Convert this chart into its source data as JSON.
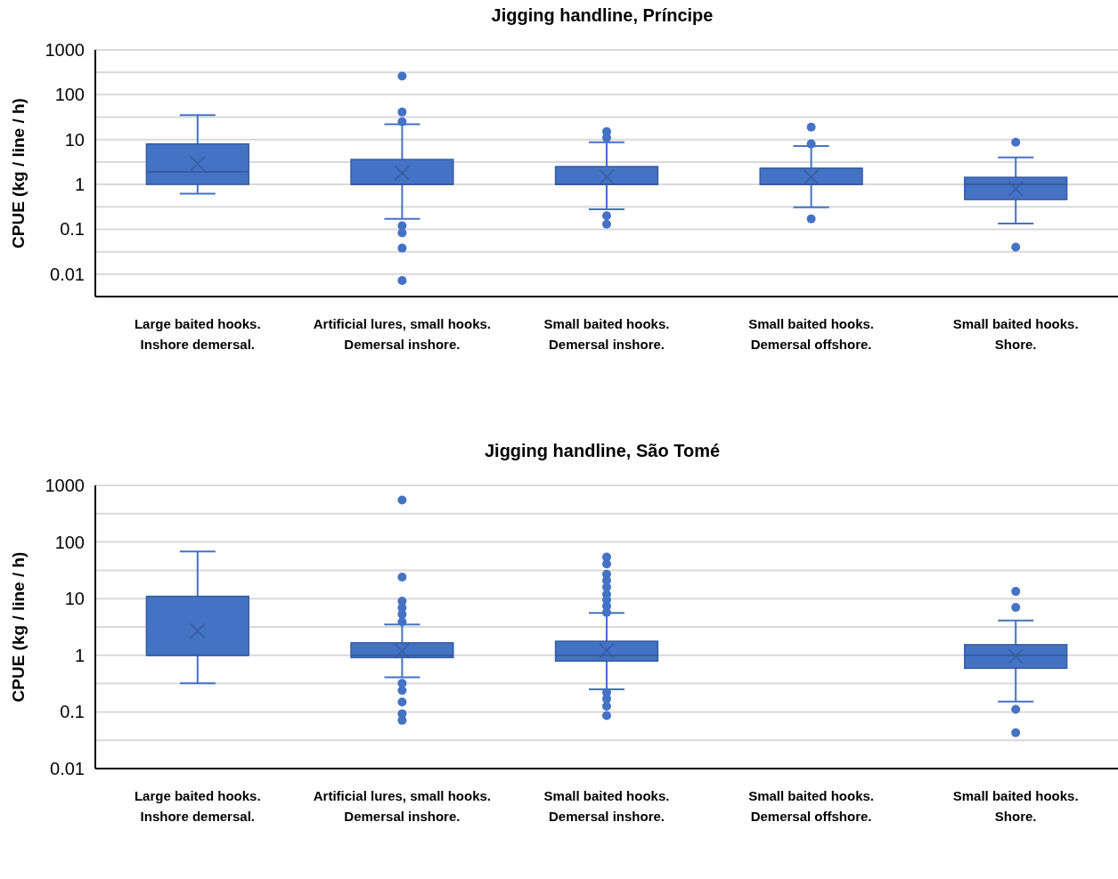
{
  "chart_data": [
    {
      "type": "box",
      "title": "Jigging handline, Príncipe",
      "ylabel": "CPUE (kg / line / h)",
      "categories": [
        "Large baited hooks. Inshore demersal.",
        "Artificial lures, small hooks. Demersal inshore.",
        "Small baited hooks. Demersal inshore.",
        "Small baited hooks. Demersal offshore.",
        "Small baited hooks. Shore."
      ],
      "log": true,
      "grid": "y",
      "ylim": [
        0.00316,
        1000
      ],
      "yticks": [
        0.01,
        {
          "value": 0.0316,
          "label": null
        },
        0.1,
        {
          "value": 0.316,
          "label": null
        },
        1,
        {
          "value": 3.16,
          "label": null
        },
        10,
        {
          "value": 31.6,
          "label": null
        },
        100,
        {
          "value": 316,
          "label": null
        },
        1000
      ],
      "series": [
        {
          "color": "#4472c4",
          "boxes": [
            {
              "low": 0.62,
              "q1": 1,
              "median": 1.9,
              "q3": 8,
              "high": 35,
              "mean": 2.9
            },
            {
              "low": 0.17,
              "q1": 1,
              "median": 1,
              "q3": 3.6,
              "high": 22,
              "mean": 1.8,
              "outliers": [
                260,
                41,
                25,
                0.12,
                0.083,
                0.038,
                0.0072
              ]
            },
            {
              "low": 0.28,
              "q1": 1,
              "median": 1,
              "q3": 2.5,
              "high": 8.7,
              "mean": 1.47,
              "outliers": [
                15,
                11,
                0.2,
                0.13
              ]
            },
            {
              "low": 0.31,
              "q1": 1,
              "median": 1,
              "q3": 2.3,
              "high": 7.2,
              "mean": 1.47,
              "outliers": [
                19,
                8,
                0.17
              ]
            },
            {
              "low": 0.135,
              "q1": 0.46,
              "median": 1,
              "q3": 1.44,
              "high": 4,
              "mean": 0.8,
              "outliers": [
                8.7,
                0.04
              ]
            }
          ]
        }
      ]
    },
    {
      "type": "box",
      "title": "Jigging handline, São Tomé",
      "ylabel": "CPUE (kg / line / h)",
      "categories": [
        "Large baited hooks. Inshore demersal.",
        "Artificial lures, small hooks. Demersal inshore.",
        "Small baited hooks. Demersal inshore.",
        "Small baited hooks. Demersal offshore.",
        "Small baited hooks. Shore."
      ],
      "log": true,
      "grid": "y",
      "ylim": [
        0.01,
        1000
      ],
      "yticks": [
        0.01,
        {
          "value": 0.0316,
          "label": null
        },
        0.1,
        {
          "value": 0.316,
          "label": null
        },
        1,
        {
          "value": 3.16,
          "label": null
        },
        10,
        {
          "value": 31.6,
          "label": null
        },
        100,
        {
          "value": 316,
          "label": null
        },
        1000
      ],
      "series": [
        {
          "color": "#4472c4",
          "boxes": [
            {
              "low": 0.32,
              "q1": 1,
              "median": 1,
              "q3": 11,
              "high": 68,
              "mean": 2.7
            },
            {
              "low": 0.41,
              "q1": 0.91,
              "median": 1,
              "q3": 1.66,
              "high": 3.5,
              "mean": 1.19,
              "outliers": [
                550,
                24,
                9,
                6.9,
                5.3,
                3.9,
                0.32,
                0.24,
                0.15,
                0.093,
                0.071
              ]
            },
            {
              "low": 0.25,
              "q1": 0.79,
              "median": 1,
              "q3": 1.77,
              "high": 5.6,
              "mean": 1.21,
              "outliers": [
                54,
                41,
                27,
                21,
                16,
                12,
                9.5,
                7.4,
                5.7,
                0.22,
                0.17,
                0.126,
                0.086
              ]
            },
            null,
            {
              "low": 0.152,
              "q1": 0.59,
              "median": 1,
              "q3": 1.54,
              "high": 4.1,
              "mean": 0.96,
              "outliers": [
                13.4,
                7,
                0.111,
                0.043
              ]
            }
          ]
        }
      ]
    }
  ]
}
